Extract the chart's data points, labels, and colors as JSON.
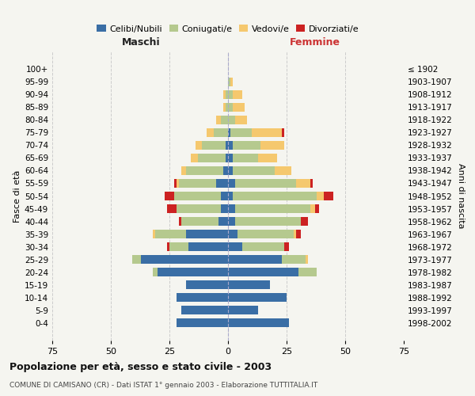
{
  "age_groups": [
    "0-4",
    "5-9",
    "10-14",
    "15-19",
    "20-24",
    "25-29",
    "30-34",
    "35-39",
    "40-44",
    "45-49",
    "50-54",
    "55-59",
    "60-64",
    "65-69",
    "70-74",
    "75-79",
    "80-84",
    "85-89",
    "90-94",
    "95-99",
    "100+"
  ],
  "birth_years": [
    "1998-2002",
    "1993-1997",
    "1988-1992",
    "1983-1987",
    "1978-1982",
    "1973-1977",
    "1968-1972",
    "1963-1967",
    "1958-1962",
    "1953-1957",
    "1948-1952",
    "1943-1947",
    "1938-1942",
    "1933-1937",
    "1928-1932",
    "1923-1927",
    "1918-1922",
    "1913-1917",
    "1908-1912",
    "1903-1907",
    "≤ 1902"
  ],
  "maschi": {
    "celibi": [
      22,
      20,
      22,
      18,
      30,
      37,
      17,
      18,
      4,
      3,
      3,
      5,
      2,
      1,
      1,
      0,
      0,
      0,
      0,
      0,
      0
    ],
    "coniugati": [
      0,
      0,
      0,
      0,
      2,
      4,
      8,
      13,
      16,
      19,
      20,
      16,
      16,
      12,
      10,
      6,
      3,
      1,
      1,
      0,
      0
    ],
    "vedovi": [
      0,
      0,
      0,
      0,
      0,
      0,
      0,
      1,
      0,
      0,
      0,
      1,
      2,
      3,
      3,
      3,
      2,
      1,
      1,
      0,
      0
    ],
    "divorziati": [
      0,
      0,
      0,
      0,
      0,
      0,
      1,
      0,
      1,
      4,
      4,
      1,
      0,
      0,
      0,
      0,
      0,
      0,
      0,
      0,
      0
    ]
  },
  "femmine": {
    "nubili": [
      26,
      13,
      25,
      18,
      30,
      23,
      6,
      4,
      3,
      3,
      2,
      3,
      2,
      2,
      2,
      1,
      0,
      0,
      0,
      0,
      0
    ],
    "coniugate": [
      0,
      0,
      0,
      0,
      8,
      10,
      18,
      24,
      28,
      32,
      36,
      26,
      18,
      11,
      12,
      9,
      3,
      2,
      2,
      1,
      0
    ],
    "vedove": [
      0,
      0,
      0,
      0,
      0,
      1,
      0,
      1,
      0,
      2,
      3,
      6,
      7,
      8,
      10,
      13,
      5,
      5,
      4,
      1,
      0
    ],
    "divorziate": [
      0,
      0,
      0,
      0,
      0,
      0,
      2,
      2,
      3,
      2,
      4,
      1,
      0,
      0,
      0,
      1,
      0,
      0,
      0,
      0,
      0
    ]
  },
  "colors": {
    "celibi": "#3a6ea5",
    "coniugati": "#b5c98e",
    "vedovi": "#f5c86e",
    "divorziati": "#cc2222"
  },
  "xlim": 75,
  "title": "Popolazione per età, sesso e stato civile - 2003",
  "subtitle": "COMUNE DI CAMISANO (CR) - Dati ISTAT 1° gennaio 2003 - Elaborazione TUTTITALIA.IT",
  "ylabel_left": "Fasce di età",
  "ylabel_right": "Anni di nascita",
  "xlabel_left": "Maschi",
  "xlabel_right": "Femmine",
  "bg_color": "#f5f5f0",
  "grid_color": "#cccccc"
}
